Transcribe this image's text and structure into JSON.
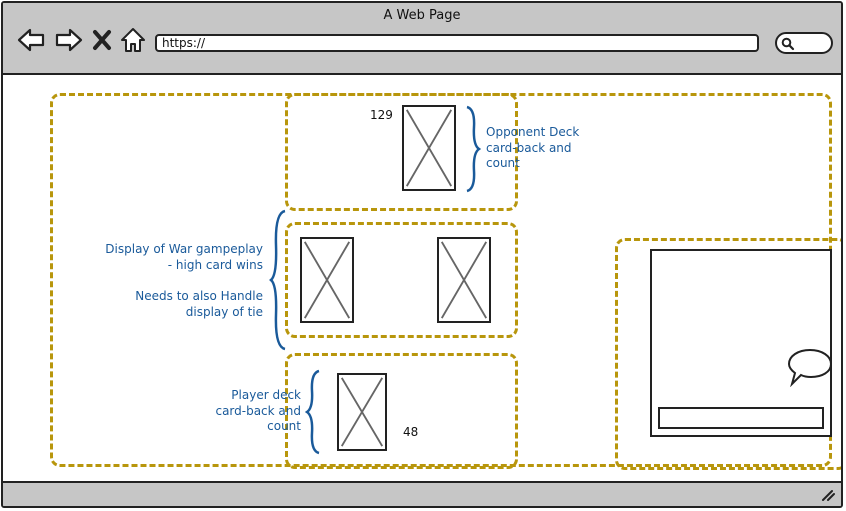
{
  "browser": {
    "title": "A Web Page",
    "url": "https://"
  },
  "opponent": {
    "count": "129",
    "note": [
      "Opponent Deck",
      "card-back and",
      "count"
    ]
  },
  "battle": {
    "note1": [
      "Display of War gampeplay",
      "- high card wins"
    ],
    "note2": [
      "Needs to also Handle",
      "display of tie"
    ]
  },
  "player": {
    "count": "48",
    "note": [
      "Player deck",
      "card-back and",
      "count"
    ]
  },
  "colors": {
    "dashed_border": "#b8960c",
    "note_text": "#1a5a9a",
    "chrome": "#c6c6c6"
  },
  "icons": [
    "back-arrow-icon",
    "forward-arrow-icon",
    "close-x-icon",
    "home-icon",
    "search-icon",
    "speech-bubble-icon",
    "resize-grip-icon"
  ]
}
